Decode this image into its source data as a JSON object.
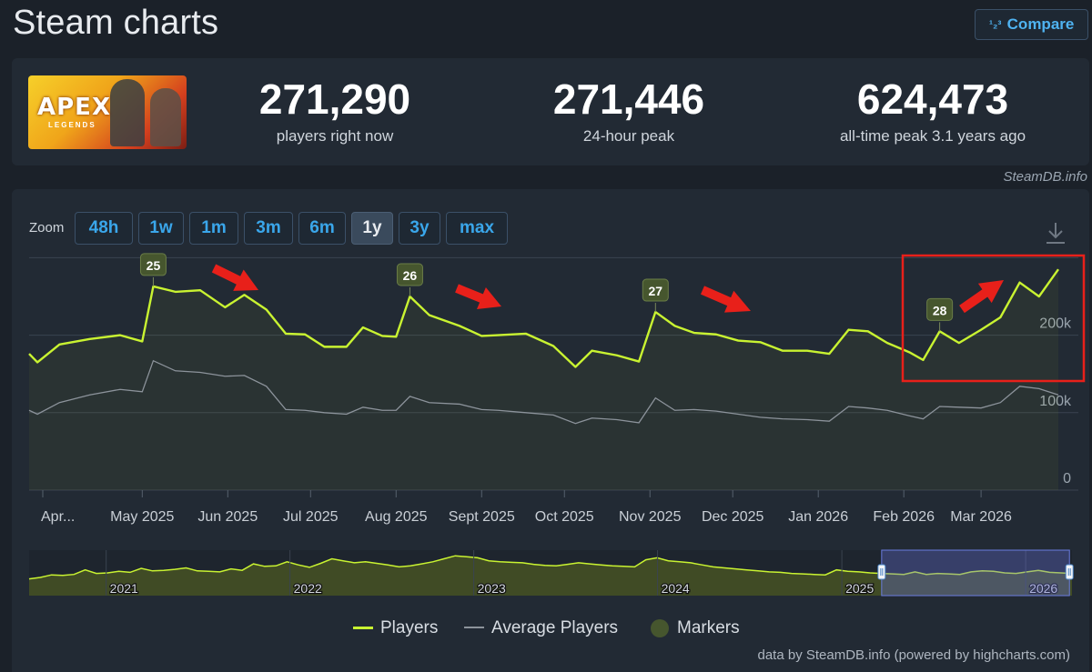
{
  "page": {
    "title": "Steam charts",
    "compare_label": "Compare",
    "compare_icon": "ranking-numbers-icon"
  },
  "stats": [
    {
      "value": "271,290",
      "label": "players right now"
    },
    {
      "value": "271,446",
      "label": "24-hour peak"
    },
    {
      "value": "624,473",
      "label": "all-time peak 3.1 years ago"
    }
  ],
  "game": {
    "logo_text": "APEX",
    "logo_sub": "LEGENDS"
  },
  "credit": "SteamDB.info",
  "zoom": {
    "label": "Zoom",
    "buttons": [
      "48h",
      "1w",
      "1m",
      "3m",
      "6m",
      "1y",
      "3y",
      "max"
    ],
    "active": "1y"
  },
  "legend": {
    "players": "Players",
    "average": "Average Players",
    "markers": "Markers"
  },
  "footer": "data by SteamDB.info (powered by highcharts.com)",
  "colors": {
    "players": "#c9f331",
    "average": "#8c939b",
    "marker": "#46562e",
    "annotation": "#e8201a",
    "accent": "#3aa6ea"
  },
  "chart_data": {
    "type": "line",
    "y_ticks": [
      0,
      100000,
      200000
    ],
    "y_tick_labels": [
      "0",
      "100k",
      "200k"
    ],
    "ylim": [
      0,
      300000
    ],
    "x_labels": [
      "Apr...",
      "May 2025",
      "Jun 2025",
      "Jul 2025",
      "Aug 2025",
      "Sept 2025",
      "Oct 2025",
      "Nov 2025",
      "Dec 2025",
      "Jan 2026",
      "Feb 2026",
      "Mar 2026"
    ],
    "x_label_dates": [
      "2025-04-01",
      "2025-05-01",
      "2025-06-01",
      "2025-07-01",
      "2025-08-01",
      "2025-09-01",
      "2025-10-01",
      "2025-11-01",
      "2025-12-01",
      "2026-01-01",
      "2026-02-01",
      "2026-03-01"
    ],
    "grid": true,
    "legend_position": "bottom",
    "series": [
      {
        "name": "Players",
        "points": [
          [
            "2025-03-21",
            176000
          ],
          [
            "2025-03-24",
            165000
          ],
          [
            "2025-04-01",
            188000
          ],
          [
            "2025-04-12",
            195000
          ],
          [
            "2025-04-23",
            200000
          ],
          [
            "2025-05-01",
            192000
          ],
          [
            "2025-05-05",
            263000
          ],
          [
            "2025-05-13",
            256000
          ],
          [
            "2025-05-22",
            258000
          ],
          [
            "2025-05-31",
            236000
          ],
          [
            "2025-06-07",
            252000
          ],
          [
            "2025-06-15",
            233000
          ],
          [
            "2025-06-22",
            202000
          ],
          [
            "2025-06-29",
            201000
          ],
          [
            "2025-07-06",
            185000
          ],
          [
            "2025-07-14",
            185000
          ],
          [
            "2025-07-20",
            210000
          ],
          [
            "2025-07-27",
            199000
          ],
          [
            "2025-08-01",
            198000
          ],
          [
            "2025-08-06",
            250000
          ],
          [
            "2025-08-13",
            226000
          ],
          [
            "2025-08-24",
            212000
          ],
          [
            "2025-09-01",
            199000
          ],
          [
            "2025-09-07",
            200000
          ],
          [
            "2025-09-17",
            202000
          ],
          [
            "2025-09-27",
            186000
          ],
          [
            "2025-10-05",
            159000
          ],
          [
            "2025-10-11",
            180000
          ],
          [
            "2025-10-20",
            174000
          ],
          [
            "2025-10-28",
            166000
          ],
          [
            "2025-11-03",
            230000
          ],
          [
            "2025-11-10",
            212000
          ],
          [
            "2025-11-17",
            203000
          ],
          [
            "2025-11-25",
            201000
          ],
          [
            "2025-12-03",
            193000
          ],
          [
            "2025-12-11",
            191000
          ],
          [
            "2025-12-19",
            180000
          ],
          [
            "2025-12-28",
            180000
          ],
          [
            "2026-01-05",
            176000
          ],
          [
            "2026-01-12",
            207000
          ],
          [
            "2026-01-19",
            205000
          ],
          [
            "2026-01-26",
            190000
          ],
          [
            "2026-02-03",
            178000
          ],
          [
            "2026-02-08",
            168000
          ],
          [
            "2026-02-14",
            205000
          ],
          [
            "2026-02-21",
            190000
          ],
          [
            "2026-03-01",
            207000
          ],
          [
            "2026-03-08",
            223000
          ],
          [
            "2026-03-15",
            268000
          ],
          [
            "2026-03-22",
            250000
          ],
          [
            "2026-03-29",
            285000
          ]
        ]
      },
      {
        "name": "Average Players",
        "points": [
          [
            "2025-03-21",
            103000
          ],
          [
            "2025-03-24",
            98000
          ],
          [
            "2025-04-01",
            113000
          ],
          [
            "2025-04-12",
            123000
          ],
          [
            "2025-04-23",
            130000
          ],
          [
            "2025-05-01",
            127000
          ],
          [
            "2025-05-05",
            167000
          ],
          [
            "2025-05-13",
            154000
          ],
          [
            "2025-05-22",
            152000
          ],
          [
            "2025-05-31",
            147000
          ],
          [
            "2025-06-07",
            148000
          ],
          [
            "2025-06-15",
            134000
          ],
          [
            "2025-06-22",
            104000
          ],
          [
            "2025-06-29",
            103000
          ],
          [
            "2025-07-06",
            100000
          ],
          [
            "2025-07-14",
            98000
          ],
          [
            "2025-07-20",
            107000
          ],
          [
            "2025-07-27",
            103000
          ],
          [
            "2025-08-01",
            103000
          ],
          [
            "2025-08-06",
            121000
          ],
          [
            "2025-08-13",
            113000
          ],
          [
            "2025-08-24",
            111000
          ],
          [
            "2025-09-01",
            104000
          ],
          [
            "2025-09-07",
            103000
          ],
          [
            "2025-09-17",
            100000
          ],
          [
            "2025-09-27",
            97000
          ],
          [
            "2025-10-05",
            86000
          ],
          [
            "2025-10-11",
            93000
          ],
          [
            "2025-10-20",
            91000
          ],
          [
            "2025-10-28",
            87000
          ],
          [
            "2025-11-03",
            119000
          ],
          [
            "2025-11-10",
            103000
          ],
          [
            "2025-11-17",
            104000
          ],
          [
            "2025-11-25",
            102000
          ],
          [
            "2025-12-03",
            98000
          ],
          [
            "2025-12-11",
            94000
          ],
          [
            "2025-12-19",
            92000
          ],
          [
            "2025-12-28",
            91000
          ],
          [
            "2026-01-05",
            89000
          ],
          [
            "2026-01-12",
            108000
          ],
          [
            "2026-01-19",
            106000
          ],
          [
            "2026-01-26",
            103000
          ],
          [
            "2026-02-03",
            96000
          ],
          [
            "2026-02-08",
            92000
          ],
          [
            "2026-02-14",
            108000
          ],
          [
            "2026-02-21",
            107000
          ],
          [
            "2026-03-01",
            106000
          ],
          [
            "2026-03-08",
            113000
          ],
          [
            "2026-03-15",
            134000
          ],
          [
            "2026-03-22",
            131000
          ],
          [
            "2026-03-29",
            123000
          ]
        ]
      }
    ],
    "markers": [
      {
        "label": "25",
        "date": "2025-05-05"
      },
      {
        "label": "26",
        "date": "2025-08-06"
      },
      {
        "label": "27",
        "date": "2025-11-03"
      },
      {
        "label": "28",
        "date": "2026-02-14"
      }
    ],
    "navigator": {
      "year_labels": [
        "2021",
        "2022",
        "2023",
        "2024",
        "2025",
        "2026"
      ],
      "year_dates": [
        "2021-01-01",
        "2022-01-01",
        "2023-01-01",
        "2024-01-01",
        "2025-01-01",
        "2026-01-01"
      ],
      "range": [
        "2020-08-01",
        "2026-04-03"
      ],
      "selected": [
        "2025-03-21",
        "2026-03-29"
      ],
      "values": [
        130000,
        145000,
        170000,
        165000,
        175000,
        220000,
        185000,
        190000,
        205000,
        195000,
        235000,
        210000,
        215000,
        225000,
        240000,
        210000,
        205000,
        200000,
        230000,
        215000,
        280000,
        255000,
        260000,
        300000,
        270000,
        245000,
        285000,
        330000,
        310000,
        290000,
        300000,
        285000,
        270000,
        250000,
        260000,
        280000,
        300000,
        330000,
        360000,
        350000,
        340000,
        310000,
        300000,
        295000,
        290000,
        275000,
        265000,
        260000,
        275000,
        290000,
        280000,
        270000,
        260000,
        255000,
        250000,
        320000,
        340000,
        310000,
        300000,
        290000,
        270000,
        250000,
        240000,
        230000,
        220000,
        210000,
        200000,
        195000,
        185000,
        180000,
        175000,
        170000,
        220000,
        205000,
        200000,
        190000,
        185000,
        180000,
        175000,
        200000,
        175000,
        185000,
        180000,
        175000,
        200000,
        210000,
        205000,
        190000,
        185000,
        200000,
        215000,
        195000,
        190000,
        185000
      ]
    }
  }
}
